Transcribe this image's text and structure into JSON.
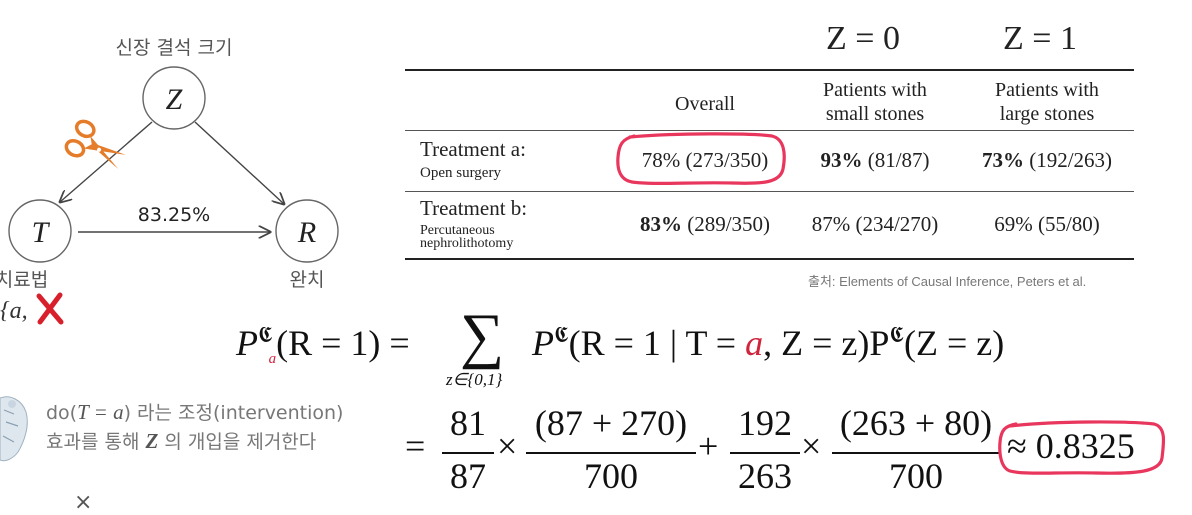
{
  "graph": {
    "z_caption": "신장 결석 크기",
    "z_node": "Z",
    "t_node": "T",
    "r_node": "R",
    "edge_label": "83.25%",
    "t_caption": "치료법",
    "r_caption": "완치",
    "t_domain_open": "{a,",
    "scissors_icon": "scissors-icon",
    "cross_mark_icon": "red-x-icon"
  },
  "table": {
    "z0_header": "Z = 0",
    "z1_header": "Z = 1",
    "col_overall": "Overall",
    "col_small_1": "Patients with",
    "col_small_2": "small stones",
    "col_large_1": "Patients with",
    "col_large_2": "large stones",
    "row_a_label": "Treatment a:",
    "row_a_sub": "Open surgery",
    "row_a_overall": "78% (273/350)",
    "row_a_small_pct": "93%",
    "row_a_small_frac": " (81/87)",
    "row_a_large_pct": "73%",
    "row_a_large_frac": " (192/263)",
    "row_b_label": "Treatment b:",
    "row_b_sub_1": "Percutaneous",
    "row_b_sub_2": "nephrolithotomy",
    "row_b_overall_pct": "83%",
    "row_b_overall_frac": " (289/350)",
    "row_b_small": "87% (234/270)",
    "row_b_large": "69% (55/80)",
    "source": "출처: Elements of Causal Inference, Peters et al."
  },
  "formula": {
    "lhs_P": "P",
    "script_C": "𝕮",
    "sub_a": "a",
    "lhs_rest": "(R = 1) =",
    "sum_symbol": "∑",
    "sum_index": "z∈{0,1}",
    "term1": "P",
    "term1_rest_a": "(R = 1 | T = ",
    "term1_a": "a",
    "term1_rest_b": ", Z = z)P",
    "term2_rest": "(Z = z)",
    "eq": "=",
    "n1": "81",
    "d1": "87",
    "times": "×",
    "n2": "(87 + 270)",
    "d2": "700",
    "plus": "+",
    "n3": "192",
    "d3": "263",
    "n4": "(263 + 80)",
    "d4": "700",
    "result": "≈ 0.8325"
  },
  "note": {
    "line1_do": "do(",
    "line1_math": "T = a",
    "line1_rest": ") 라는 조정(intervention)",
    "line2_pre": "효과를 통해 ",
    "line2_Z": "Z",
    "line2_rest": " 의 개입을 제거한다",
    "avatar_icon": "avatar-figure-icon",
    "close_mark": "×"
  },
  "colors": {
    "accent_red": "#d0243c",
    "highlight_pink": "#e8365d"
  }
}
